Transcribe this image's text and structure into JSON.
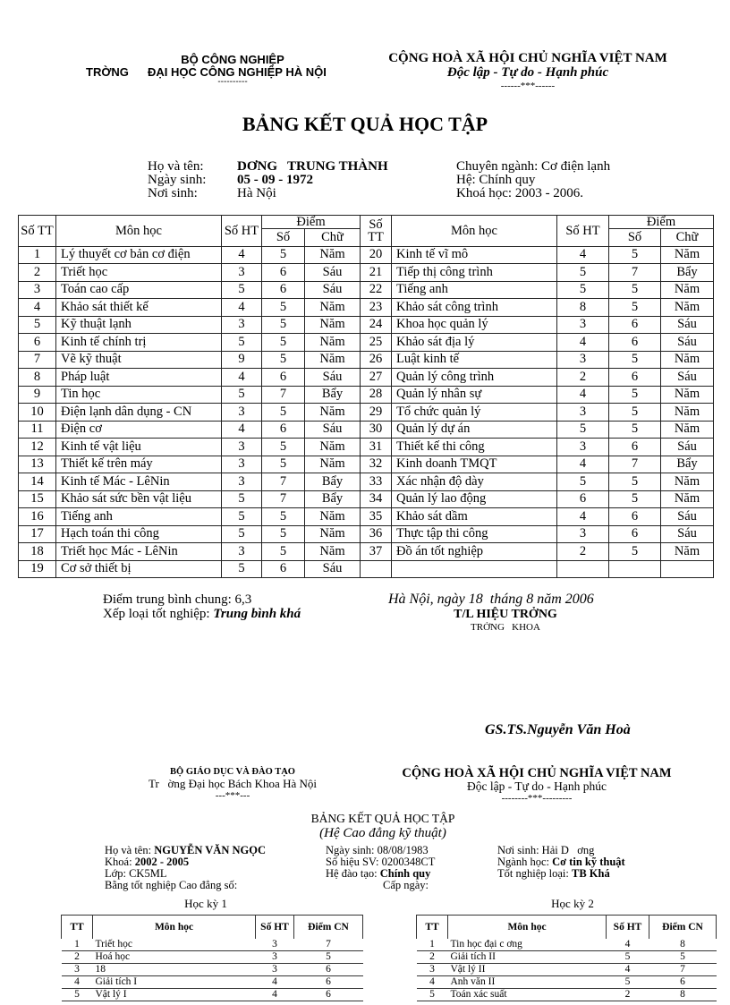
{
  "doc1": {
    "ministry": "BỘ CÔNG NGHIỆP",
    "school_prefix": "TRỜNG",
    "school": "ĐẠI HỌC CÔNG NGHIỆP HÀ NỘI",
    "school_divider": "----------",
    "republic": "CỘNG HOÀ XÃ HỘI CHỦ NGHĨA VIỆT NAM",
    "motto": "Độc lập - Tự do - Hạnh phúc",
    "motto_divider": "------***------",
    "title": "BẢNG KẾT QUẢ HỌC TẬP",
    "info": {
      "name_label": "Họ và tên:",
      "name": "DƠNG   TRUNG THÀNH",
      "dob_label": "Ngày sinh:",
      "dob": "05 - 09 - 1972",
      "pob_label": "Nơi sinh:",
      "pob": "Hà Nội",
      "major": "Chuyên ngành: Cơ điện lạnh",
      "system": "Hệ: Chính quy",
      "course": "Khoá học: 2003 - 2006."
    },
    "table": {
      "headers": {
        "stt": "Số TT",
        "subject": "Môn học",
        "ht": "Số HT",
        "score": "Điểm",
        "num": "Số",
        "word": "Chữ"
      },
      "left_rows": [
        [
          "1",
          "Lý thuyết cơ bản cơ điện",
          "4",
          "5",
          "Năm"
        ],
        [
          "2",
          "Triết học",
          "3",
          "6",
          "Sáu"
        ],
        [
          "3",
          "Toán cao cấp",
          "5",
          "6",
          "Sáu"
        ],
        [
          "4",
          "Khảo sát thiết kế",
          "4",
          "5",
          "Năm"
        ],
        [
          "5",
          "Kỹ thuật lạnh",
          "3",
          "5",
          "Năm"
        ],
        [
          "6",
          "Kinh tế chính trị",
          "5",
          "5",
          "Năm"
        ],
        [
          "7",
          "Vẽ kỹ thuật",
          "9",
          "5",
          "Năm"
        ],
        [
          "8",
          "Pháp luật",
          "4",
          "6",
          "Sáu"
        ],
        [
          "9",
          "Tin học",
          "5",
          "7",
          "Bẩy"
        ],
        [
          "10",
          "Điện lạnh dân dụng - CN",
          "3",
          "5",
          "Năm"
        ],
        [
          "11",
          "Điện cơ",
          "4",
          "6",
          "Sáu"
        ],
        [
          "12",
          "Kinh tế vật liệu",
          "3",
          "5",
          "Năm"
        ],
        [
          "13",
          "Thiết kế trên máy",
          "3",
          "5",
          "Năm"
        ],
        [
          "14",
          "Kinh tế Mác - LêNin",
          "3",
          "7",
          "Bẩy"
        ],
        [
          "15",
          "Khảo sát sức bền vật liệu",
          "5",
          "7",
          "Bẩy"
        ],
        [
          "16",
          "Tiếng anh",
          "5",
          "5",
          "Năm"
        ],
        [
          "17",
          "Hạch toán thi công",
          "5",
          "5",
          "Năm"
        ],
        [
          "18",
          "Triết học Mác - LêNin",
          "3",
          "5",
          "Năm"
        ],
        [
          "19",
          "Cơ sở thiết bị",
          "5",
          "6",
          "Sáu"
        ]
      ],
      "right_rows": [
        [
          "20",
          "Kinh tế vĩ mô",
          "4",
          "5",
          "Năm"
        ],
        [
          "21",
          "Tiếp thị công trình",
          "5",
          "7",
          "Bẩy"
        ],
        [
          "22",
          "Tiếng anh",
          "5",
          "5",
          "Năm"
        ],
        [
          "23",
          "Khảo sát công trình",
          "8",
          "5",
          "Năm"
        ],
        [
          "24",
          "Khoa học quản lý",
          "3",
          "6",
          "Sáu"
        ],
        [
          "25",
          "Khảo sát địa lý",
          "4",
          "6",
          "Sáu"
        ],
        [
          "26",
          "Luật kinh tế",
          "3",
          "5",
          "Năm"
        ],
        [
          "27",
          "Quản lý công trình",
          "2",
          "6",
          "Sáu"
        ],
        [
          "28",
          "Quản lý nhân sự",
          "4",
          "5",
          "Năm"
        ],
        [
          "29",
          "Tổ chức quản lý",
          "3",
          "5",
          "Năm"
        ],
        [
          "30",
          "Quản lý dự án",
          "5",
          "5",
          "Năm"
        ],
        [
          "31",
          "Thiết kế thi công",
          "3",
          "6",
          "Sáu"
        ],
        [
          "32",
          "Kinh doanh TMQT",
          "4",
          "7",
          "Bẩy"
        ],
        [
          "33",
          "Xác nhận độ dày",
          "5",
          "5",
          "Năm"
        ],
        [
          "34",
          "Quản lý lao động",
          "6",
          "5",
          "Năm"
        ],
        [
          "35",
          "Khảo sát dầm",
          "4",
          "6",
          "Sáu"
        ],
        [
          "36",
          "Thực tập thi công",
          "3",
          "6",
          "Sáu"
        ],
        [
          "37",
          "Đồ án tốt nghiệp",
          "2",
          "5",
          "Năm"
        ],
        [
          "",
          "",
          "",
          "",
          ""
        ]
      ]
    },
    "gpa_label": "Điểm trung bình chung: 6,3",
    "rank_label": "Xếp loại tốt nghiệp: ",
    "rank": "Trung bình khá",
    "date": "Hà Nội, ngày 18  tháng 8 năm 2006",
    "sign_title": "T/L HIỆU TRỞNG",
    "sign_subtitle": "TRỞNG   KHOA",
    "signer": "GS.TS.Nguyễn Văn Hoà"
  },
  "doc2": {
    "ministry": "BỘ GIÁO DỤC VÀ ĐÀO TẠO",
    "school": "Tr   ờng Đại học Bách Khoa Hà Nội",
    "school_divider": "---***---",
    "republic": "CỘNG HOÀ XÃ HỘI CHỦ NGHĨA VIỆT NAM",
    "motto": "Độc lập - Tự do - Hạnh phúc",
    "motto_divider": "--------***---------",
    "title": "BẢNG KẾT QUẢ HỌC TẬP",
    "subtitle": "(Hệ Cao đẳng kỹ thuật)",
    "info": {
      "name_label": "Họ và tên: ",
      "name": "NGUYỄN VĂN NGỌC",
      "course_label": "Khoá: ",
      "course": "2002 - 2005",
      "class": "Lớp: CK5ML",
      "diploma": "Bằng tốt nghiệp Cao đẳng số:",
      "dob": "Ngày sinh: 08/08/1983",
      "student_id": "Số hiệu SV: 0200348CT",
      "system_label": "Hệ đào tạo: ",
      "system": "Chính quy",
      "issue_date": "Cấp ngày:",
      "pob": "Nơi sinh: Hải D   ơng",
      "major_label": "Ngành học: ",
      "major": "Cơ tin kỹ thuật",
      "grade_label": "Tốt nghiệp loại: ",
      "grade": "TB Khá"
    },
    "headers": {
      "tt": "TT",
      "subject": "Môn học",
      "ht": "Số HT",
      "score": "Điểm CN"
    },
    "semester1": {
      "title": "Học kỳ 1",
      "rows": [
        [
          "1",
          "Triết học",
          "3",
          "7"
        ],
        [
          "2",
          "Hoá học",
          "3",
          "5"
        ],
        [
          "3",
          "18",
          "3",
          "6"
        ],
        [
          "4",
          "Giải tích I",
          "4",
          "6"
        ],
        [
          "5",
          "Vật lý I",
          "4",
          "6"
        ]
      ]
    },
    "semester2": {
      "title": "Học kỳ 2",
      "rows": [
        [
          "1",
          "Tin học đại c   ơng",
          "4",
          "8"
        ],
        [
          "2",
          "Giải tích II",
          "5",
          "5"
        ],
        [
          "3",
          "Vật lý II",
          "4",
          "7"
        ],
        [
          "4",
          "Anh văn II",
          "5",
          "6"
        ],
        [
          "5",
          "Toán xác suất",
          "2",
          "8"
        ]
      ]
    }
  }
}
